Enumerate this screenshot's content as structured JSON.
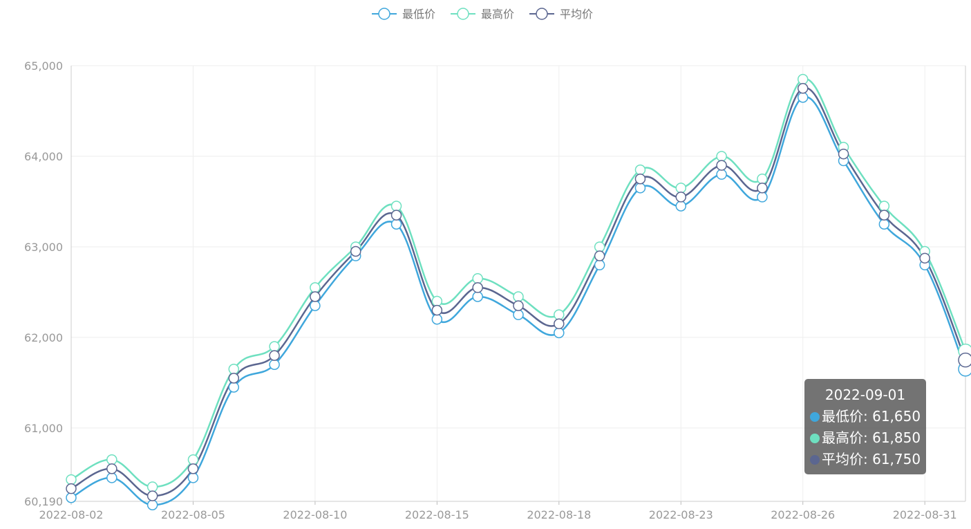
{
  "chart_data": {
    "type": "line",
    "smooth": true,
    "legend": {
      "position": "top-center"
    },
    "grid": true,
    "ylim": [
      60190,
      65000
    ],
    "y_ticks": [
      60190,
      61000,
      62000,
      63000,
      64000,
      65000
    ],
    "y_tick_labels": [
      "60,190",
      "61,000",
      "62,000",
      "63,000",
      "64,000",
      "65,000"
    ],
    "x": [
      "2022-08-02",
      "2022-08-03",
      "2022-08-04",
      "2022-08-05",
      "2022-08-08",
      "2022-08-09",
      "2022-08-10",
      "2022-08-11",
      "2022-08-12",
      "2022-08-15",
      "2022-08-16",
      "2022-08-17",
      "2022-08-18",
      "2022-08-19",
      "2022-08-22",
      "2022-08-23",
      "2022-08-24",
      "2022-08-25",
      "2022-08-26",
      "2022-08-29",
      "2022-08-30",
      "2022-08-31",
      "2022-09-01"
    ],
    "x_tick_labels": [
      "2022-08-02",
      "2022-08-05",
      "2022-08-10",
      "2022-08-15",
      "2022-08-18",
      "2022-08-23",
      "2022-08-26",
      "2022-08-31"
    ],
    "series": [
      {
        "name": "最低价",
        "color": "#3fa7dc",
        "values": [
          60230,
          60450,
          60150,
          60450,
          61450,
          61700,
          62350,
          62900,
          63250,
          62200,
          62450,
          62250,
          62050,
          62800,
          63650,
          63450,
          63800,
          63550,
          64650,
          63950,
          63250,
          62800,
          61650
        ]
      },
      {
        "name": "最高价",
        "color": "#6ee0c0",
        "values": [
          60430,
          60650,
          60350,
          60650,
          61650,
          61900,
          62550,
          63000,
          63450,
          62400,
          62650,
          62450,
          62250,
          63000,
          63850,
          63650,
          64000,
          63750,
          64850,
          64100,
          63450,
          62950,
          61850
        ]
      },
      {
        "name": "平均价",
        "color": "#5b6690",
        "values": [
          60330,
          60550,
          60250,
          60550,
          61550,
          61800,
          62450,
          62950,
          63350,
          62300,
          62550,
          62350,
          62150,
          62900,
          63750,
          63550,
          63900,
          63650,
          64750,
          64025,
          63350,
          62875,
          61750
        ]
      }
    ],
    "highlight_index": 22
  },
  "tooltip": {
    "title": "2022-09-01",
    "rows": [
      {
        "label": "最低价: 61,650",
        "color": "#3fa7dc"
      },
      {
        "label": "最高价: 61,850",
        "color": "#6ee0c0"
      },
      {
        "label": "平均价: 61,750",
        "color": "#5b6690"
      }
    ]
  }
}
